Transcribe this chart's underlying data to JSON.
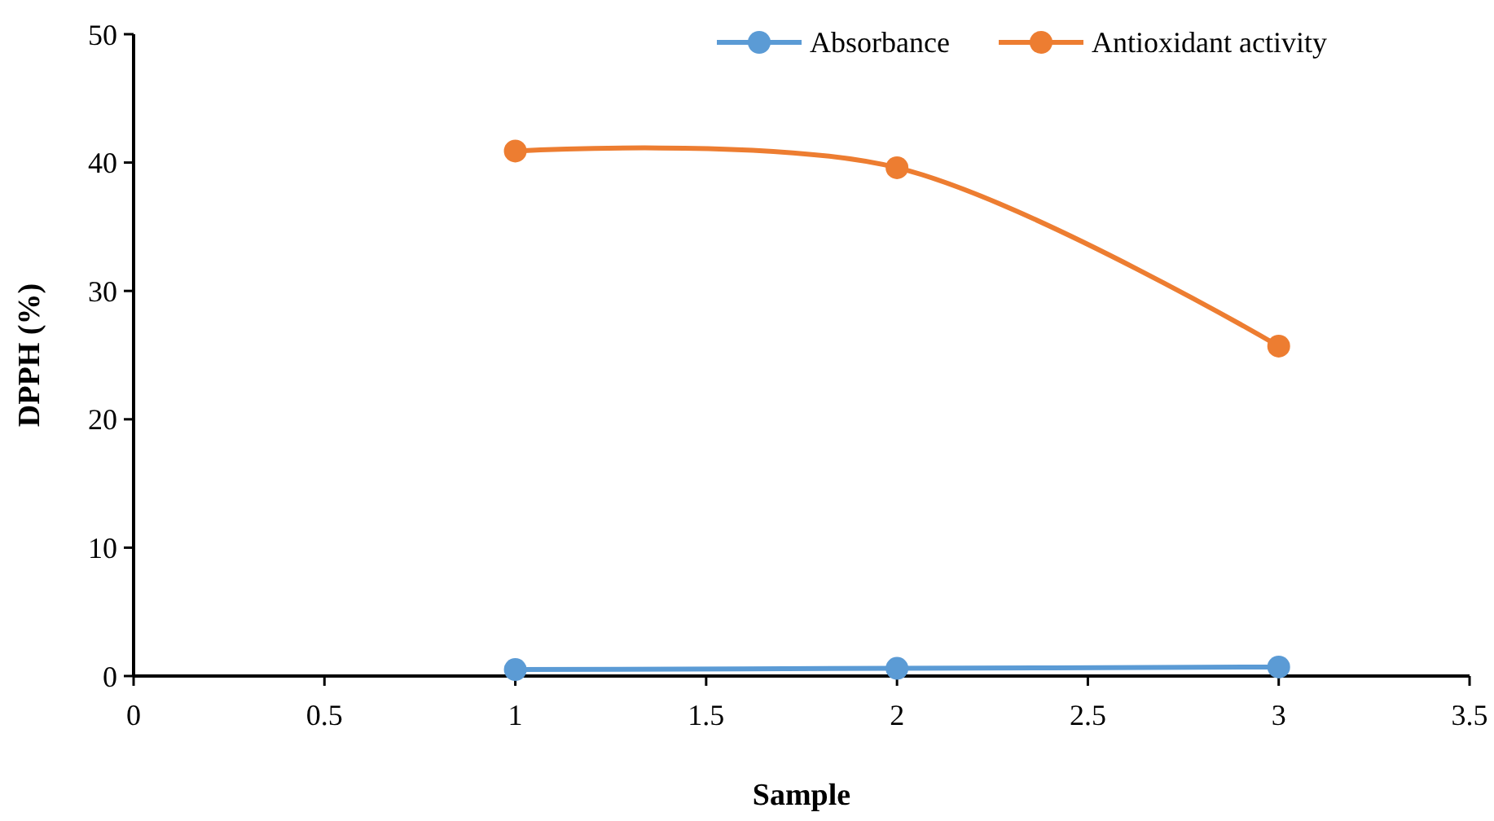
{
  "chart_data": {
    "type": "line",
    "xlabel": "Sample",
    "ylabel": "DPPH (%)",
    "x": [
      1,
      2,
      3
    ],
    "series": [
      {
        "name": "Absorbance",
        "color": "#5b9bd5",
        "values": [
          0.5,
          0.6,
          0.7
        ]
      },
      {
        "name": "Antioxidant activity",
        "color": "#ed7d31",
        "values": [
          40.9,
          39.6,
          25.7
        ]
      }
    ],
    "xlim": [
      0,
      3.5
    ],
    "xticks": [
      0,
      0.5,
      1,
      1.5,
      2,
      2.5,
      3,
      3.5
    ],
    "ylim": [
      0,
      50
    ],
    "yticks": [
      0,
      10,
      20,
      30,
      40,
      50
    ],
    "grid": false,
    "legend": "top right",
    "marker": "circle",
    "line_style": "solid"
  }
}
